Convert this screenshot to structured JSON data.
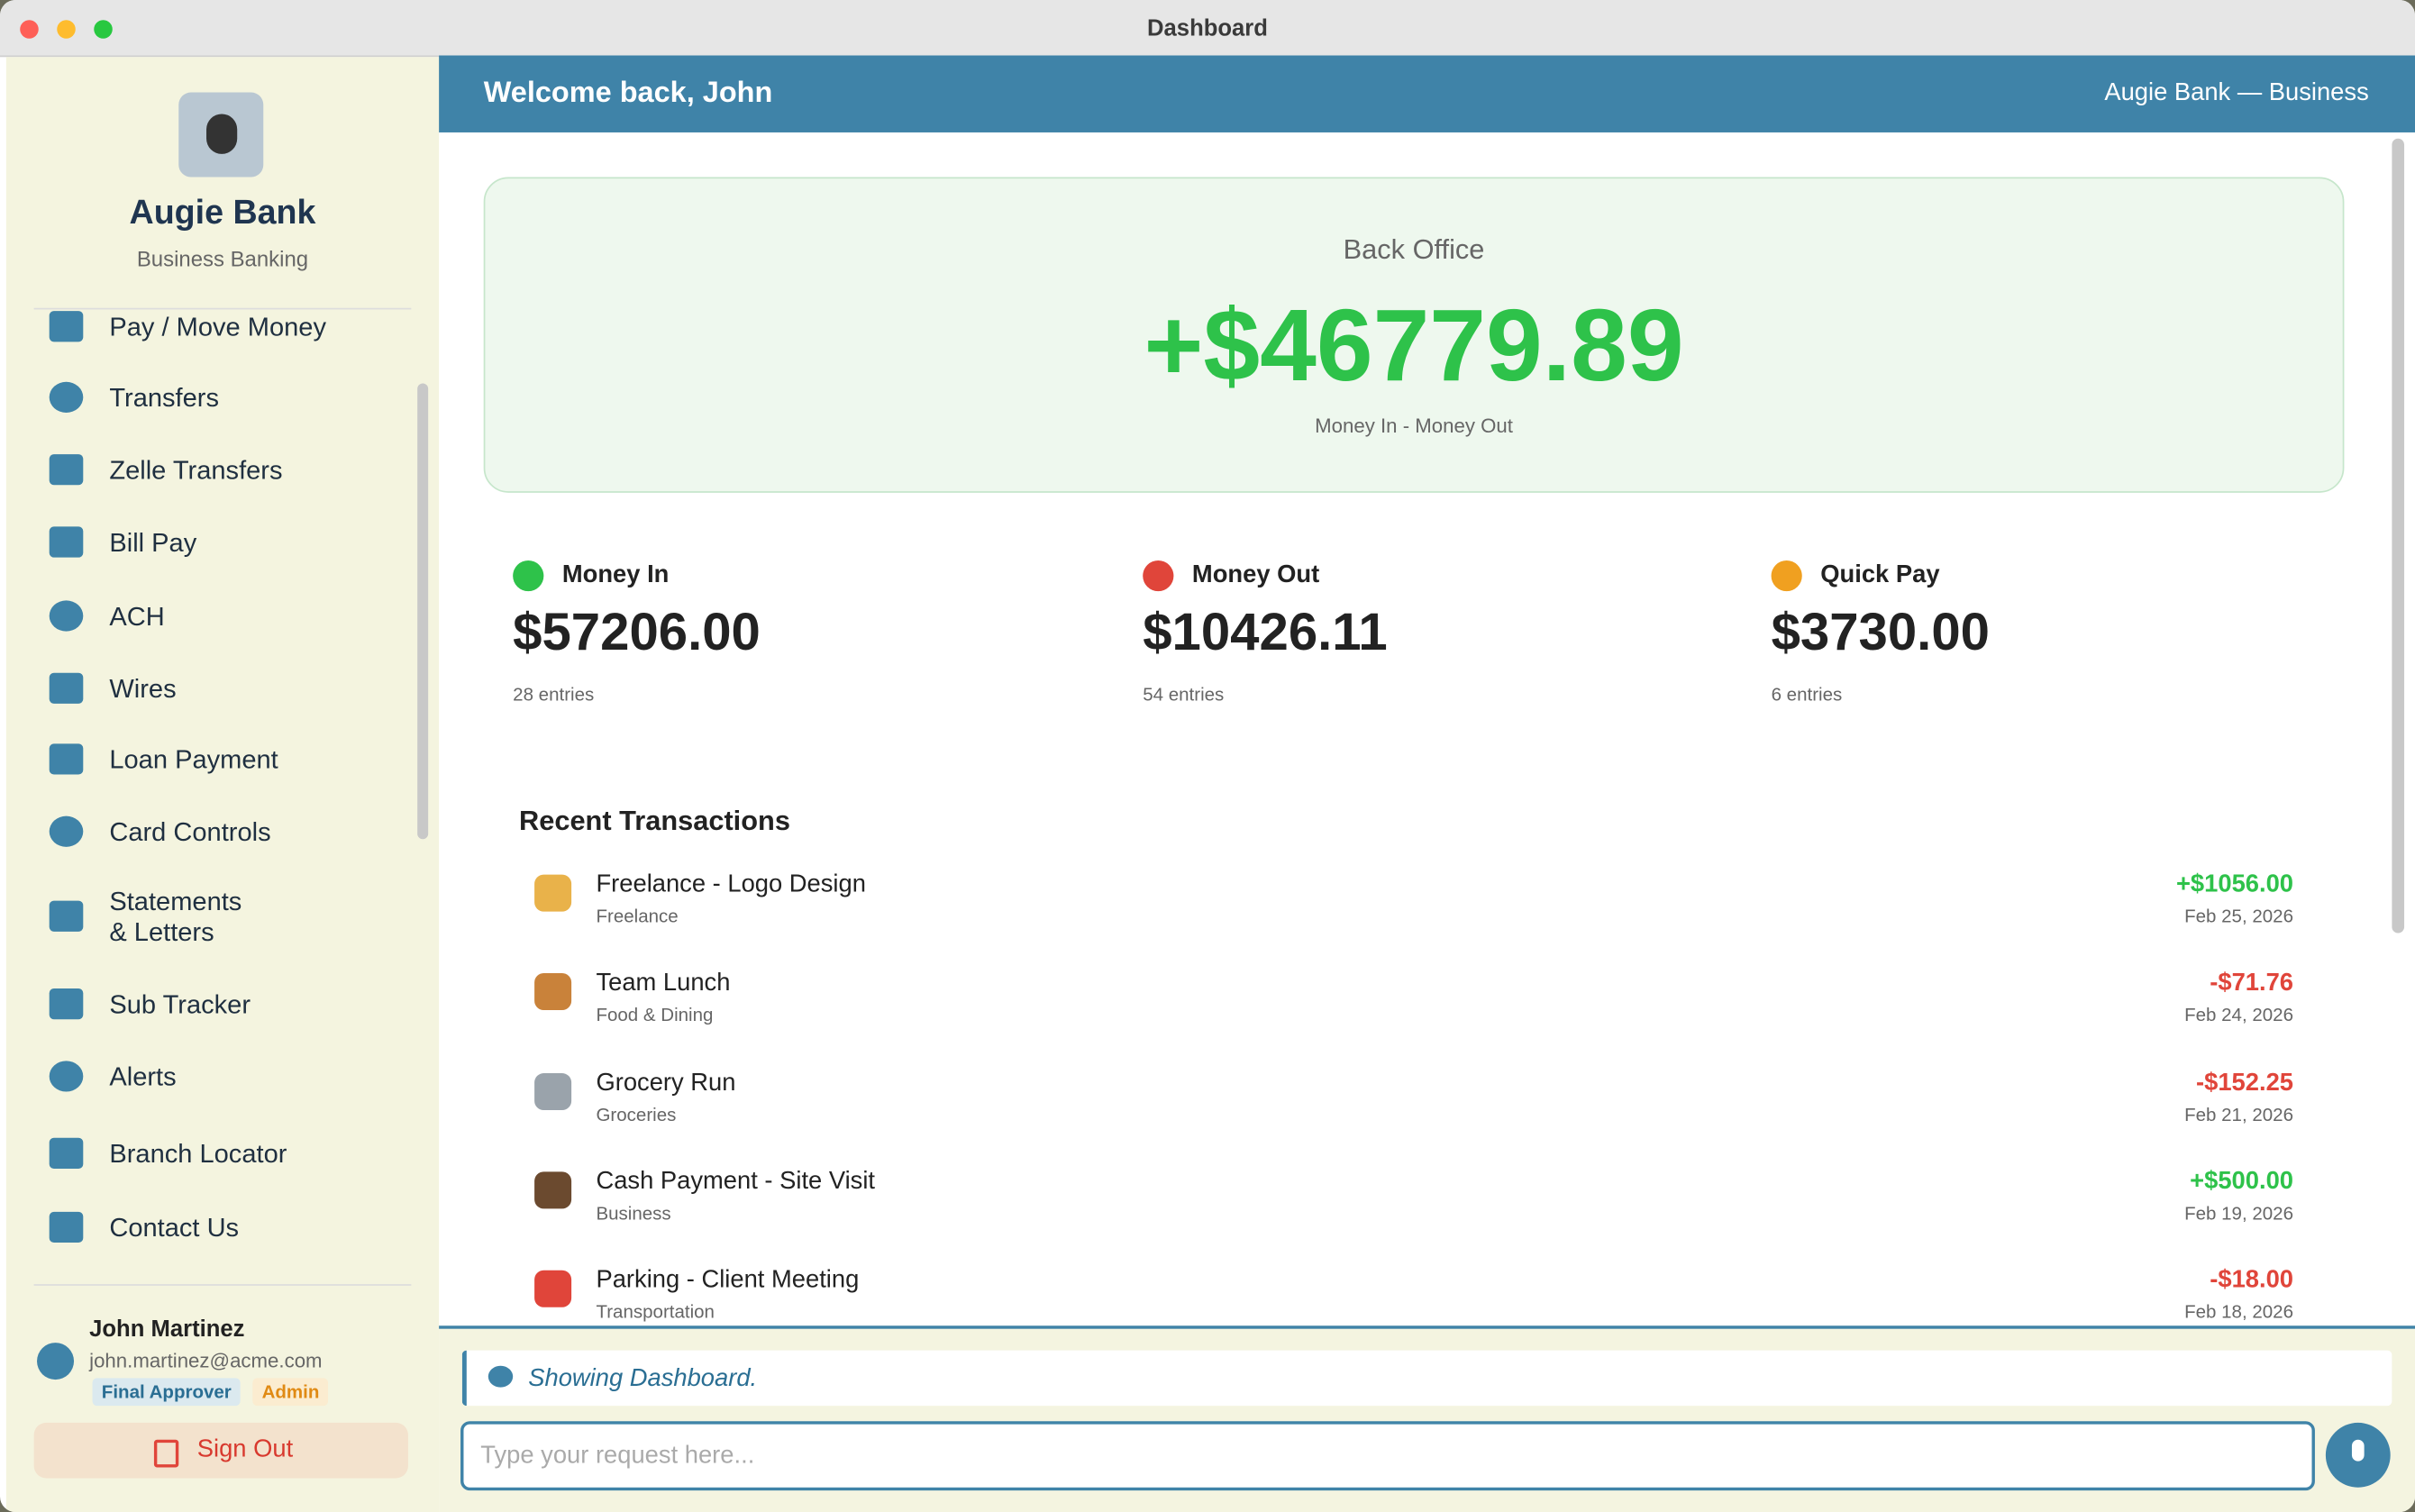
{
  "window": {
    "title": "Dashboard"
  },
  "header": {
    "welcome": "Welcome back, John",
    "bank_label": "Augie Bank — Business"
  },
  "sidebar": {
    "brand": "Augie Bank",
    "subtitle": "Business Banking",
    "nav": [
      "Pay / Move Money",
      "Transfers",
      "Zelle Transfers",
      "Bill Pay",
      "ACH",
      "Wires",
      "Loan Payment",
      "Card Controls",
      "Statements\n& Letters",
      "Sub Tracker",
      "Alerts",
      "Branch Locator",
      "Contact Us"
    ],
    "user": {
      "name": "John Martinez",
      "email": "john.martinez@acme.com",
      "roles": [
        "Final Approver",
        "Admin"
      ]
    },
    "sign_out": "Sign Out"
  },
  "balance_card": {
    "title": "Back Office",
    "amount": "+$46779.89",
    "caption": "Money In - Money Out"
  },
  "stats": [
    {
      "label": "Money In",
      "amount": "$57206.00",
      "entries": "28 entries"
    },
    {
      "label": "Money Out",
      "amount": "$10426.11",
      "entries": "54 entries"
    },
    {
      "label": "Quick Pay",
      "amount": "$3730.00",
      "entries": "6 entries"
    }
  ],
  "transactions": {
    "title": "Recent Transactions",
    "rows": [
      {
        "description": "Freelance - Logo Design",
        "category": "Freelance",
        "amount": "+$1056.00",
        "date": "Feb 25, 2026"
      },
      {
        "description": "Team Lunch",
        "category": "Food & Dining",
        "amount": "-$71.76",
        "date": "Feb 24, 2026"
      },
      {
        "description": "Grocery Run",
        "category": "Groceries",
        "amount": "-$152.25",
        "date": "Feb 21, 2026"
      },
      {
        "description": "Cash Payment - Site Visit",
        "category": "Business",
        "amount": "+$500.00",
        "date": "Feb 19, 2026"
      },
      {
        "description": "Parking - Client Meeting",
        "category": "Transportation",
        "amount": "-$18.00",
        "date": "Feb 18, 2026"
      }
    ]
  },
  "chat": {
    "status": "Showing Dashboard.",
    "placeholder": "Type your request here..."
  }
}
